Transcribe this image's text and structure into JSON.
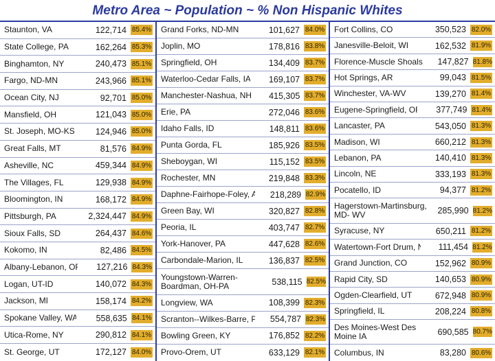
{
  "title": "Metro Area ~ Population ~ % Non Hispanic Whites",
  "colors": {
    "title": "#2b3a9e",
    "percent_badge": "#e2ad2c",
    "grid": "#2b3a9e"
  },
  "columns": [
    {
      "rows": [
        {
          "name": "Staunton, VA",
          "population": "122,714",
          "percent": "85.4%"
        },
        {
          "name": "State College, PA",
          "population": "162,264",
          "percent": "85.3%"
        },
        {
          "name": "Binghamton, NY",
          "population": "240,473",
          "percent": "85.1%"
        },
        {
          "name": "Fargo, ND-MN",
          "population": "243,966",
          "percent": "85.1%"
        },
        {
          "name": "Ocean City, NJ",
          "population": "92,701",
          "percent": "85.0%"
        },
        {
          "name": "Mansfield, OH",
          "population": "121,043",
          "percent": "85.0%"
        },
        {
          "name": "St. Joseph, MO-KS",
          "population": "124,946",
          "percent": "85.0%"
        },
        {
          "name": "Great Falls, MT",
          "population": "81,576",
          "percent": "84.9%"
        },
        {
          "name": "Asheville, NC",
          "population": "459,344",
          "percent": "84.9%"
        },
        {
          "name": "The Villages, FL",
          "population": "129,938",
          "percent": "84.9%"
        },
        {
          "name": "Bloomington, IN",
          "population": "168,172",
          "percent": "84.9%"
        },
        {
          "name": "Pittsburgh, PA",
          "population": "2,324,447",
          "percent": "84.9%"
        },
        {
          "name": "Sioux Falls, SD",
          "population": "264,437",
          "percent": "84.6%"
        },
        {
          "name": "Kokomo, IN",
          "population": "82,486",
          "percent": "84.5%"
        },
        {
          "name": "Albany-Lebanon, OR",
          "population": "127,216",
          "percent": "84.3%"
        },
        {
          "name": "Logan, UT-ID",
          "population": "140,072",
          "percent": "84.3%"
        },
        {
          "name": "Jackson, MI",
          "population": "158,174",
          "percent": "84.2%"
        },
        {
          "name": "Spokane Valley, WA",
          "population": "558,635",
          "percent": "84.1%"
        },
        {
          "name": "Utica-Rome, NY",
          "population": "290,812",
          "percent": "84.1%"
        },
        {
          "name": "St. George, UT",
          "population": "172,127",
          "percent": "84.0%"
        }
      ]
    },
    {
      "rows": [
        {
          "name": "Grand Forks, ND-MN",
          "population": "101,627",
          "percent": "84.0%"
        },
        {
          "name": "Joplin, MO",
          "population": "178,816",
          "percent": "83.8%"
        },
        {
          "name": "Springfield, OH",
          "population": "134,409",
          "percent": "83.7%"
        },
        {
          "name": "Waterloo-Cedar Falls, IA",
          "population": "169,107",
          "percent": "83.7%"
        },
        {
          "name": "Manchester-Nashua, NH",
          "population": "415,305",
          "percent": "83.7%"
        },
        {
          "name": "Erie, PA",
          "population": "272,046",
          "percent": "83.6%"
        },
        {
          "name": "Idaho Falls, ID",
          "population": "148,811",
          "percent": "83.6%"
        },
        {
          "name": "Punta Gorda, FL",
          "population": "185,926",
          "percent": "83.5%"
        },
        {
          "name": "Sheboygan, WI",
          "population": "115,152",
          "percent": "83.5%"
        },
        {
          "name": "Rochester, MN",
          "population": "219,848",
          "percent": "83.3%"
        },
        {
          "name": "Daphne-Fairhope-Foley, AL",
          "population": "218,289",
          "percent": "82.9%"
        },
        {
          "name": "Green Bay, WI",
          "population": "320,827",
          "percent": "82.8%"
        },
        {
          "name": "Peoria, IL",
          "population": "403,747",
          "percent": "82.7%"
        },
        {
          "name": "York-Hanover, PA",
          "population": "447,628",
          "percent": "82.6%"
        },
        {
          "name": "Carbondale-Marion, IL",
          "population": "136,837",
          "percent": "82.5%"
        },
        {
          "name": "Youngstown-Warren-Boardman, OH-PA",
          "population": "538,115",
          "percent": "82.5%",
          "tall": true
        },
        {
          "name": "Longview, WA",
          "population": "108,399",
          "percent": "82.3%"
        },
        {
          "name": "Scranton--Wilkes-Barre, PA",
          "population": "554,787",
          "percent": "82.3%"
        },
        {
          "name": "Bowling Green, KY",
          "population": "176,852",
          "percent": "82.2%"
        },
        {
          "name": "Provo-Orem, UT",
          "population": "633,129",
          "percent": "82.1%"
        }
      ]
    },
    {
      "rows": [
        {
          "name": "Fort Collins, CO",
          "population": "350,523",
          "percent": "82.0%"
        },
        {
          "name": "Janesville-Beloit, WI",
          "population": "162,532",
          "percent": "81.9%"
        },
        {
          "name": "Florence-Muscle Shoals, AL",
          "population": "147,827",
          "percent": "81.8%"
        },
        {
          "name": "Hot Springs, AR",
          "population": "99,043",
          "percent": "81.5%"
        },
        {
          "name": "Winchester, VA-WV",
          "population": "139,270",
          "percent": "81.4%"
        },
        {
          "name": "Eugene-Springfield, OR",
          "population": "377,749",
          "percent": "81.4%"
        },
        {
          "name": "Lancaster, PA",
          "population": "543,050",
          "percent": "81.3%"
        },
        {
          "name": "Madison, WI",
          "population": "660,212",
          "percent": "81.3%"
        },
        {
          "name": "Lebanon, PA",
          "population": "140,410",
          "percent": "81.3%"
        },
        {
          "name": "Lincoln, NE",
          "population": "333,193",
          "percent": "81.3%"
        },
        {
          "name": "Pocatello, ID",
          "population": "94,377",
          "percent": "81.2%"
        },
        {
          "name": "Hagerstown-Martinsburg, MD- WV",
          "population": "285,990",
          "percent": "81.2%",
          "tall": true
        },
        {
          "name": "Syracuse, NY",
          "population": "650,211",
          "percent": "81.2%"
        },
        {
          "name": "Watertown-Fort Drum, NY",
          "population": "111,454",
          "percent": "81.2%"
        },
        {
          "name": "Grand Junction, CO",
          "population": "152,962",
          "percent": "80.9%"
        },
        {
          "name": "Rapid City, SD",
          "population": "140,653",
          "percent": "80.9%"
        },
        {
          "name": "Ogden-Clearfield, UT",
          "population": "672,948",
          "percent": "80.9%"
        },
        {
          "name": "Springfield, IL",
          "population": "208,224",
          "percent": "80.8%"
        },
        {
          "name": "Des Moines-West Des Moine IA",
          "population": "690,585",
          "percent": "80.7%",
          "tall": true
        },
        {
          "name": "Columbus, IN",
          "population": "83,280",
          "percent": "80.6%"
        }
      ]
    }
  ]
}
